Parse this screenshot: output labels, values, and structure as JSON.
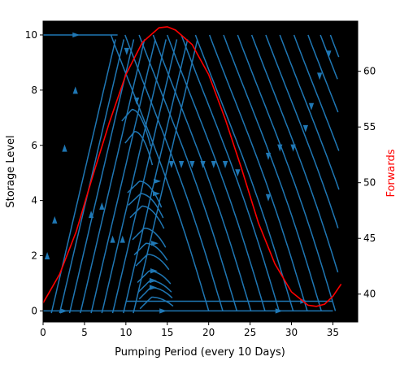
{
  "chart_data": {
    "type": "line",
    "title": "",
    "xlabel": "Pumping Period (every 10 Days)",
    "ylabel": "Storage Level",
    "y2label": "Forwards",
    "xlim": [
      0,
      38
    ],
    "ylim": [
      -0.4,
      10.5
    ],
    "y2lim": [
      37.5,
      64.5
    ],
    "x_ticks": [
      0,
      5,
      10,
      15,
      20,
      25,
      30,
      35
    ],
    "y_ticks": [
      0,
      2,
      4,
      6,
      8,
      10
    ],
    "y2_ticks": [
      40,
      45,
      50,
      55,
      60
    ],
    "background": "#000000",
    "streamline_color": "#1f77b4",
    "forward_color": "#ff0000",
    "series": [
      {
        "name": "Forwards",
        "axis": "right",
        "x": [
          0,
          2,
          4,
          6,
          8,
          10,
          12,
          14,
          15,
          16,
          18,
          20,
          22,
          24,
          26,
          28,
          30,
          32,
          33,
          34,
          35,
          36
        ],
        "values": [
          39.2,
          41.8,
          45.6,
          50.6,
          55.4,
          59.7,
          62.6,
          63.9,
          64.0,
          63.7,
          62.4,
          59.7,
          55.7,
          51.2,
          46.4,
          42.7,
          40.2,
          39.0,
          38.9,
          39.1,
          39.8,
          40.9
        ]
      }
    ],
    "streamlines": {
      "diagonal": [
        {
          "x0": -0.5,
          "y0": -2,
          "slope": 0.8
        },
        {
          "x0": 0.5,
          "y0": -2,
          "slope": 0.8
        },
        {
          "x0": 1.7,
          "y0": -2,
          "slope": 0.8
        },
        {
          "x0": 3,
          "y0": -2,
          "slope": 0.8
        },
        {
          "x0": 4.3,
          "y0": -2,
          "slope": 0.8
        },
        {
          "x0": 5.6,
          "y0": -2,
          "slope": 0.8
        },
        {
          "x0": 6.9,
          "y0": -2,
          "slope": 0.8
        },
        {
          "x0": 8.2,
          "y0": -2,
          "slope": 0.8
        },
        {
          "x0": 9.4,
          "y0": -2,
          "slope": 0.8
        }
      ],
      "humps": [
        {
          "y": 7.3,
          "xstart": 9.5,
          "xend": 13
        },
        {
          "y": 6.5,
          "xstart": 9.9,
          "xend": 13.2
        },
        {
          "y": 4.7,
          "xstart": 10.2,
          "xend": 14.3
        },
        {
          "y": 4.25,
          "xstart": 10.3,
          "xend": 14.5
        },
        {
          "y": 3.8,
          "xstart": 10.5,
          "xend": 14.6
        },
        {
          "y": 3.0,
          "xstart": 10.8,
          "xend": 14.8
        },
        {
          "y": 2.45,
          "xstart": 11.0,
          "xend": 15.0
        },
        {
          "y": 2.05,
          "xstart": 11.2,
          "xend": 15.2
        },
        {
          "y": 1.45,
          "xstart": 11.4,
          "xend": 15.4
        },
        {
          "y": 1.1,
          "xstart": 11.5,
          "xend": 15.5
        },
        {
          "y": 0.85,
          "xstart": 11.6,
          "xend": 15.6
        },
        {
          "y": 0.5,
          "xstart": 11.7,
          "xend": 15.7
        }
      ],
      "descending": [
        {
          "x0": 8.5,
          "slope": -1.0
        },
        {
          "x0": 10.2,
          "slope": -1.0
        },
        {
          "x0": 11.9,
          "slope": -1.0
        },
        {
          "x0": 13.6,
          "slope": -1.0
        },
        {
          "x0": 15.3,
          "slope": -1.0
        },
        {
          "x0": 17.0,
          "slope": -1.0
        },
        {
          "x0": 18.7,
          "slope": -1.0
        },
        {
          "x0": 20.4,
          "slope": -1.0
        },
        {
          "x0": 22.1,
          "slope": -1.0
        },
        {
          "x0": 23.8,
          "slope": -1.0
        },
        {
          "x0": 25.5,
          "slope": -1.0
        },
        {
          "x0": 27.2,
          "slope": -1.0
        },
        {
          "x0": 28.9,
          "slope": -1.0
        },
        {
          "x0": 30.6,
          "slope": -1.0
        },
        {
          "x0": 32.3,
          "slope": -1.0
        },
        {
          "x0": 33.8,
          "slope": -1.0
        },
        {
          "x0": 35.0,
          "slope": -1.0
        }
      ],
      "bottom_lines": [
        {
          "y": 0.0,
          "xstart": 0,
          "xend": 35
        },
        {
          "y": 0.35,
          "xstart": 10,
          "xend": 35
        },
        {
          "y": 10.0,
          "xstart": 0,
          "xend": 9
        }
      ],
      "arrows": [
        {
          "x": 2.5,
          "y": 0.0,
          "dir": "right"
        },
        {
          "x": 4,
          "y": 10.0,
          "dir": "right"
        },
        {
          "x": 13.8,
          "y": 4.7,
          "dir": "right"
        },
        {
          "x": 13.7,
          "y": 4.25,
          "dir": "right"
        },
        {
          "x": 13.5,
          "y": 2.45,
          "dir": "right"
        },
        {
          "x": 13.4,
          "y": 1.45,
          "dir": "right"
        },
        {
          "x": 13.3,
          "y": 1.1,
          "dir": "right"
        },
        {
          "x": 13.3,
          "y": 0.85,
          "dir": "right"
        },
        {
          "x": 14.5,
          "y": 0.0,
          "dir": "right"
        },
        {
          "x": 28.5,
          "y": 0.0,
          "dir": "right"
        },
        {
          "x": 31.5,
          "y": 0.35,
          "dir": "right"
        },
        {
          "x": 0.5,
          "y": 2.0,
          "dir": "up"
        },
        {
          "x": 1.4,
          "y": 3.3,
          "dir": "up"
        },
        {
          "x": 2.6,
          "y": 5.9,
          "dir": "up"
        },
        {
          "x": 3.9,
          "y": 8.0,
          "dir": "up"
        },
        {
          "x": 5.8,
          "y": 3.5,
          "dir": "up"
        },
        {
          "x": 7.1,
          "y": 3.8,
          "dir": "up"
        },
        {
          "x": 8.4,
          "y": 2.6,
          "dir": "up"
        },
        {
          "x": 9.6,
          "y": 2.6,
          "dir": "up"
        },
        {
          "x": 10.1,
          "y": 9.4,
          "dir": "down"
        },
        {
          "x": 11.3,
          "y": 7.6,
          "dir": "down"
        },
        {
          "x": 15.5,
          "y": 5.3,
          "dir": "down"
        },
        {
          "x": 16.7,
          "y": 5.3,
          "dir": "down"
        },
        {
          "x": 18.0,
          "y": 5.3,
          "dir": "down"
        },
        {
          "x": 19.3,
          "y": 5.3,
          "dir": "down"
        },
        {
          "x": 20.6,
          "y": 5.3,
          "dir": "down"
        },
        {
          "x": 22.0,
          "y": 5.3,
          "dir": "down"
        },
        {
          "x": 23.5,
          "y": 5.0,
          "dir": "down"
        },
        {
          "x": 27.2,
          "y": 5.6,
          "dir": "down"
        },
        {
          "x": 28.6,
          "y": 5.9,
          "dir": "down"
        },
        {
          "x": 30.2,
          "y": 5.9,
          "dir": "down"
        },
        {
          "x": 31.7,
          "y": 6.6,
          "dir": "down"
        },
        {
          "x": 32.4,
          "y": 7.4,
          "dir": "down"
        },
        {
          "x": 33.4,
          "y": 8.5,
          "dir": "down"
        },
        {
          "x": 34.5,
          "y": 9.3,
          "dir": "down"
        },
        {
          "x": 27.2,
          "y": 4.1,
          "dir": "down"
        }
      ]
    }
  }
}
